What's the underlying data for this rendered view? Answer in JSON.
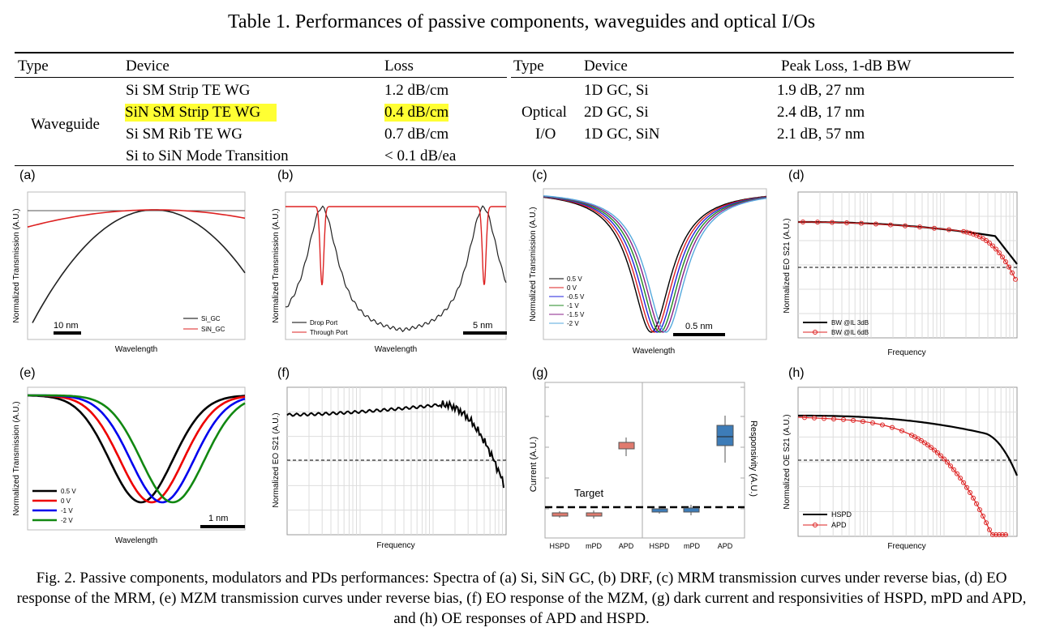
{
  "table": {
    "title": "Table 1. Performances of passive components, waveguides and optical I/Os",
    "left_headers": {
      "type": "Type",
      "device": "Device",
      "loss": "Loss"
    },
    "right_headers": {
      "type": "Type",
      "device": "Device",
      "peak": "Peak Loss, 1-dB BW"
    },
    "left_group": "Waveguide",
    "left_rows": [
      {
        "device": "Si SM Strip TE WG",
        "loss": "1.2 dB/cm"
      },
      {
        "device": "SiN SM Strip TE WG",
        "loss": "0.4 dB/cm"
      },
      {
        "device": "Si SM Rib TE WG",
        "loss": "0.7 dB/cm"
      },
      {
        "device": "Si to SiN Mode Transition",
        "loss": "< 0.1 dB/ea"
      }
    ],
    "right_group_line1": "Optical",
    "right_group_line2": "I/O",
    "right_rows": [
      {
        "device": "1D GC, Si",
        "peak": "1.9 dB, 27 nm"
      },
      {
        "device": "2D GC, Si",
        "peak": "2.4 dB, 17 nm"
      },
      {
        "device": "1D GC, SiN",
        "peak": "2.1 dB, 57 nm"
      }
    ],
    "highlight_color": "#ffff33"
  },
  "caption": "Fig. 2. Passive components, modulators and PDs performances: Spectra of (a) Si, SiN GC, (b) DRF, (c) MRM transmission curves under reverse bias, (d) EO response of the MRM, (e) MZM transmission curves under reverse bias, (f) EO response of the MZM, (g) dark current and responsivities of HSPD, mPD and APD, and (h) OE responses of APD and HSPD.",
  "chart_data": [
    {
      "panel": "(a)",
      "type": "line",
      "xlabel": "Wavelength",
      "ylabel": "Normalized Transmission (A.U.)",
      "scale_bar": "10 nm",
      "series": [
        {
          "name": "Si_GC",
          "color": "#000000"
        },
        {
          "name": "SiN_GC",
          "color": "#dd2222"
        }
      ]
    },
    {
      "panel": "(b)",
      "type": "line",
      "xlabel": "Wavelength",
      "ylabel": "Normalized Transmission (A.U.)",
      "scale_bar": "5 nm",
      "series": [
        {
          "name": "Drop Port",
          "color": "#000000"
        },
        {
          "name": "Through Port",
          "color": "#dd2222"
        }
      ]
    },
    {
      "panel": "(c)",
      "type": "line",
      "xlabel": "Wavelength",
      "ylabel": "Normalized Transmission (A.U.)",
      "scale_bar": "0.5 nm",
      "series": [
        {
          "name": "0.5 V",
          "color": "#000000"
        },
        {
          "name": "0 V",
          "color": "#dd2222"
        },
        {
          "name": "-0.5 V",
          "color": "#2222dd"
        },
        {
          "name": "-1 V",
          "color": "#228822"
        },
        {
          "name": "-1.5 V",
          "color": "#882288"
        },
        {
          "name": "-2 V",
          "color": "#55aadd"
        }
      ]
    },
    {
      "panel": "(d)",
      "type": "line",
      "xlabel": "Frequency",
      "ylabel": "Normalized EO S21 (A.U.)",
      "series": [
        {
          "name": "BW @IL 3dB",
          "color": "#000000"
        },
        {
          "name": "BW @IL 6dB",
          "color": "#dd2222"
        }
      ]
    },
    {
      "panel": "(e)",
      "type": "line",
      "xlabel": "Wavelength",
      "ylabel": "Normalized Transmission (A.U.)",
      "scale_bar": "1 nm",
      "series": [
        {
          "name": "0.5 V",
          "color": "#000000"
        },
        {
          "name": "0 V",
          "color": "#ee0000"
        },
        {
          "name": "-1 V",
          "color": "#0000ee"
        },
        {
          "name": "-2 V",
          "color": "#118811"
        }
      ]
    },
    {
      "panel": "(f)",
      "type": "line",
      "xlabel": "Frequency",
      "ylabel": "Normalized EO S21 (A.U.)",
      "series": [
        {
          "name": "EO S21",
          "color": "#000000"
        }
      ]
    },
    {
      "panel": "(g)",
      "type": "box",
      "ylabel_left": "Current (A.U.)",
      "ylabel_right": "Responsivity (A.U.)",
      "target_label": "Target",
      "categories_left": [
        "HSPD",
        "mPD",
        "APD"
      ],
      "categories_right": [
        "HSPD",
        "mPD",
        "APD"
      ],
      "left_color": "#e07a6e",
      "right_color": "#3d7cb8"
    },
    {
      "panel": "(h)",
      "type": "line",
      "xlabel": "Frequency",
      "ylabel": "Normalized OE S21 (A.U.)",
      "series": [
        {
          "name": "HSPD",
          "color": "#000000"
        },
        {
          "name": "APD",
          "color": "#dd2222"
        }
      ]
    }
  ]
}
